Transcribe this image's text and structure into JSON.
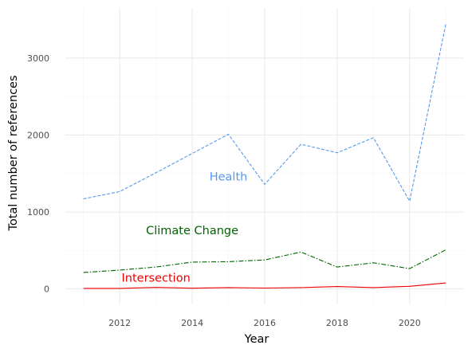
{
  "chart_data": {
    "type": "line",
    "xlabel": "Year",
    "ylabel": "Total number of references",
    "xlim": [
      2010.5,
      2021.5
    ],
    "ylim": [
      -200,
      3650
    ],
    "x_ticks": [
      2012,
      2014,
      2016,
      2018,
      2020
    ],
    "y_ticks": [
      0,
      1000,
      2000,
      3000
    ],
    "grid": true,
    "legend": "none",
    "x": [
      2011,
      2012,
      2013,
      2014,
      2015,
      2016,
      2017,
      2018,
      2019,
      2020,
      2021
    ],
    "series": [
      {
        "name": "Health",
        "color": "#5599ee",
        "line_style": "dashed",
        "values": [
          1170,
          1265,
          1510,
          1760,
          2010,
          1360,
          1880,
          1770,
          1965,
          1140,
          3450
        ]
      },
      {
        "name": "Climate Change",
        "color": "#006400",
        "line_style": "dashdot",
        "values": [
          215,
          245,
          285,
          350,
          355,
          378,
          480,
          285,
          340,
          265,
          510
        ]
      },
      {
        "name": "Intersection",
        "color": "#ee0000",
        "line_style": "solid",
        "values": [
          8,
          8,
          20,
          10,
          18,
          12,
          18,
          32,
          18,
          35,
          78
        ]
      }
    ]
  }
}
